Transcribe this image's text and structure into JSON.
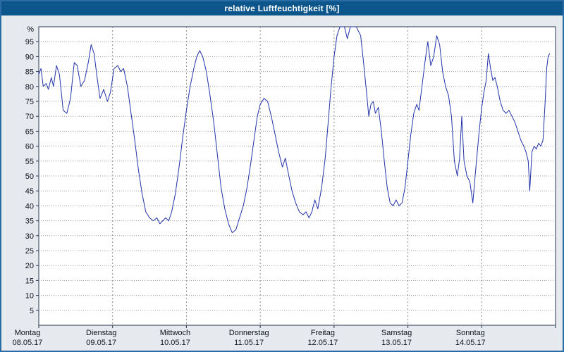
{
  "window": {
    "title": "relative Luftfeuchtigkeit [%]"
  },
  "colors": {
    "title_bar": "#0d568c",
    "frame": "#2a6ca6",
    "background": "#e6e9ed",
    "plot_background": "#ffffff",
    "plot_border": "#2a3550",
    "grid": "#9b9b9b",
    "line": "#2233aa",
    "text": "#10121c"
  },
  "chart_data": {
    "type": "line",
    "title": "relative Luftfeuchtigkeit [%]",
    "unit_label": "%",
    "xlabel": "",
    "ylabel": "relative Luftfeuchtigkeit [%]",
    "ylim": [
      0,
      100
    ],
    "y_ticks": [
      5,
      10,
      15,
      20,
      25,
      30,
      35,
      40,
      45,
      50,
      55,
      60,
      65,
      70,
      75,
      80,
      85,
      90,
      95
    ],
    "grid": true,
    "legend_position": "none",
    "days": [
      {
        "name": "Montag",
        "date": "08.05.17"
      },
      {
        "name": "Dienstag",
        "date": "09.05.17"
      },
      {
        "name": "Mittwoch",
        "date": "10.05.17"
      },
      {
        "name": "Donnerstag",
        "date": "11.05.17"
      },
      {
        "name": "Freitag",
        "date": "12.05.17"
      },
      {
        "name": "Samstag",
        "date": "13.05.17"
      },
      {
        "name": "Sonntag",
        "date": "14.05.17"
      }
    ],
    "series": [
      {
        "name": "relative Luftfeuchtigkeit",
        "color": "#2233aa",
        "points": [
          [
            0.0,
            84
          ],
          [
            0.03,
            86
          ],
          [
            0.06,
            80
          ],
          [
            0.1,
            81
          ],
          [
            0.13,
            79
          ],
          [
            0.17,
            83
          ],
          [
            0.2,
            80
          ],
          [
            0.24,
            87
          ],
          [
            0.28,
            84
          ],
          [
            0.33,
            72
          ],
          [
            0.38,
            71
          ],
          [
            0.43,
            76
          ],
          [
            0.48,
            88
          ],
          [
            0.52,
            87
          ],
          [
            0.57,
            80
          ],
          [
            0.62,
            82
          ],
          [
            0.67,
            88
          ],
          [
            0.71,
            94
          ],
          [
            0.75,
            91
          ],
          [
            0.79,
            83
          ],
          [
            0.83,
            76
          ],
          [
            0.88,
            79
          ],
          [
            0.93,
            75
          ],
          [
            0.97,
            78
          ],
          [
            1.02,
            86
          ],
          [
            1.07,
            87
          ],
          [
            1.11,
            85
          ],
          [
            1.15,
            86
          ],
          [
            1.2,
            80
          ],
          [
            1.25,
            71
          ],
          [
            1.3,
            62
          ],
          [
            1.35,
            52
          ],
          [
            1.4,
            44
          ],
          [
            1.45,
            38
          ],
          [
            1.5,
            36
          ],
          [
            1.55,
            35
          ],
          [
            1.6,
            36
          ],
          [
            1.64,
            34
          ],
          [
            1.68,
            35
          ],
          [
            1.72,
            36
          ],
          [
            1.76,
            35
          ],
          [
            1.8,
            38
          ],
          [
            1.85,
            44
          ],
          [
            1.9,
            53
          ],
          [
            1.95,
            63
          ],
          [
            2.0,
            72
          ],
          [
            2.05,
            80
          ],
          [
            2.1,
            86
          ],
          [
            2.14,
            90
          ],
          [
            2.18,
            92
          ],
          [
            2.22,
            90
          ],
          [
            2.27,
            85
          ],
          [
            2.32,
            77
          ],
          [
            2.37,
            68
          ],
          [
            2.42,
            57
          ],
          [
            2.47,
            46
          ],
          [
            2.52,
            39
          ],
          [
            2.57,
            34
          ],
          [
            2.62,
            31
          ],
          [
            2.67,
            32
          ],
          [
            2.72,
            36
          ],
          [
            2.77,
            40
          ],
          [
            2.82,
            46
          ],
          [
            2.87,
            54
          ],
          [
            2.92,
            63
          ],
          [
            2.96,
            70
          ],
          [
            3.0,
            74
          ],
          [
            3.05,
            76
          ],
          [
            3.1,
            75
          ],
          [
            3.15,
            70
          ],
          [
            3.2,
            64
          ],
          [
            3.25,
            58
          ],
          [
            3.3,
            53
          ],
          [
            3.34,
            56
          ],
          [
            3.38,
            51
          ],
          [
            3.43,
            45
          ],
          [
            3.48,
            41
          ],
          [
            3.53,
            38
          ],
          [
            3.58,
            37
          ],
          [
            3.62,
            38
          ],
          [
            3.66,
            36
          ],
          [
            3.7,
            38
          ],
          [
            3.74,
            42
          ],
          [
            3.78,
            39
          ],
          [
            3.83,
            46
          ],
          [
            3.88,
            56
          ],
          [
            3.92,
            68
          ],
          [
            3.96,
            80
          ],
          [
            4.0,
            90
          ],
          [
            4.04,
            97
          ],
          [
            4.08,
            100
          ],
          [
            4.14,
            100
          ],
          [
            4.18,
            96
          ],
          [
            4.22,
            100
          ],
          [
            4.3,
            100
          ],
          [
            4.36,
            97
          ],
          [
            4.4,
            88
          ],
          [
            4.44,
            78
          ],
          [
            4.47,
            70
          ],
          [
            4.5,
            74
          ],
          [
            4.53,
            75
          ],
          [
            4.56,
            71
          ],
          [
            4.6,
            73
          ],
          [
            4.64,
            65
          ],
          [
            4.68,
            55
          ],
          [
            4.72,
            46
          ],
          [
            4.76,
            41
          ],
          [
            4.8,
            40
          ],
          [
            4.84,
            42
          ],
          [
            4.88,
            40
          ],
          [
            4.92,
            41
          ],
          [
            4.96,
            46
          ],
          [
            5.0,
            55
          ],
          [
            5.04,
            64
          ],
          [
            5.08,
            71
          ],
          [
            5.12,
            74
          ],
          [
            5.15,
            72
          ],
          [
            5.19,
            80
          ],
          [
            5.23,
            88
          ],
          [
            5.27,
            95
          ],
          [
            5.31,
            87
          ],
          [
            5.35,
            90
          ],
          [
            5.39,
            97
          ],
          [
            5.43,
            94
          ],
          [
            5.47,
            85
          ],
          [
            5.51,
            80
          ],
          [
            5.55,
            77
          ],
          [
            5.59,
            70
          ],
          [
            5.63,
            55
          ],
          [
            5.67,
            50
          ],
          [
            5.7,
            56
          ],
          [
            5.73,
            70
          ],
          [
            5.76,
            55
          ],
          [
            5.8,
            50
          ],
          [
            5.84,
            48
          ],
          [
            5.88,
            41
          ],
          [
            5.91,
            50
          ],
          [
            5.94,
            58
          ],
          [
            5.97,
            66
          ],
          [
            6.0,
            73
          ],
          [
            6.03,
            78
          ],
          [
            6.06,
            82
          ],
          [
            6.09,
            91
          ],
          [
            6.12,
            86
          ],
          [
            6.15,
            82
          ],
          [
            6.18,
            83
          ],
          [
            6.21,
            80
          ],
          [
            6.25,
            75
          ],
          [
            6.29,
            72
          ],
          [
            6.33,
            71
          ],
          [
            6.37,
            72
          ],
          [
            6.41,
            70
          ],
          [
            6.45,
            68
          ],
          [
            6.49,
            65
          ],
          [
            6.53,
            62
          ],
          [
            6.57,
            60
          ],
          [
            6.6,
            58
          ],
          [
            6.63,
            55
          ],
          [
            6.65,
            45
          ],
          [
            6.68,
            58
          ],
          [
            6.71,
            60
          ],
          [
            6.74,
            59
          ],
          [
            6.77,
            61
          ],
          [
            6.8,
            60
          ],
          [
            6.83,
            62
          ],
          [
            6.86,
            75
          ],
          [
            6.88,
            86
          ],
          [
            6.9,
            90
          ],
          [
            6.92,
            91
          ]
        ]
      }
    ]
  }
}
